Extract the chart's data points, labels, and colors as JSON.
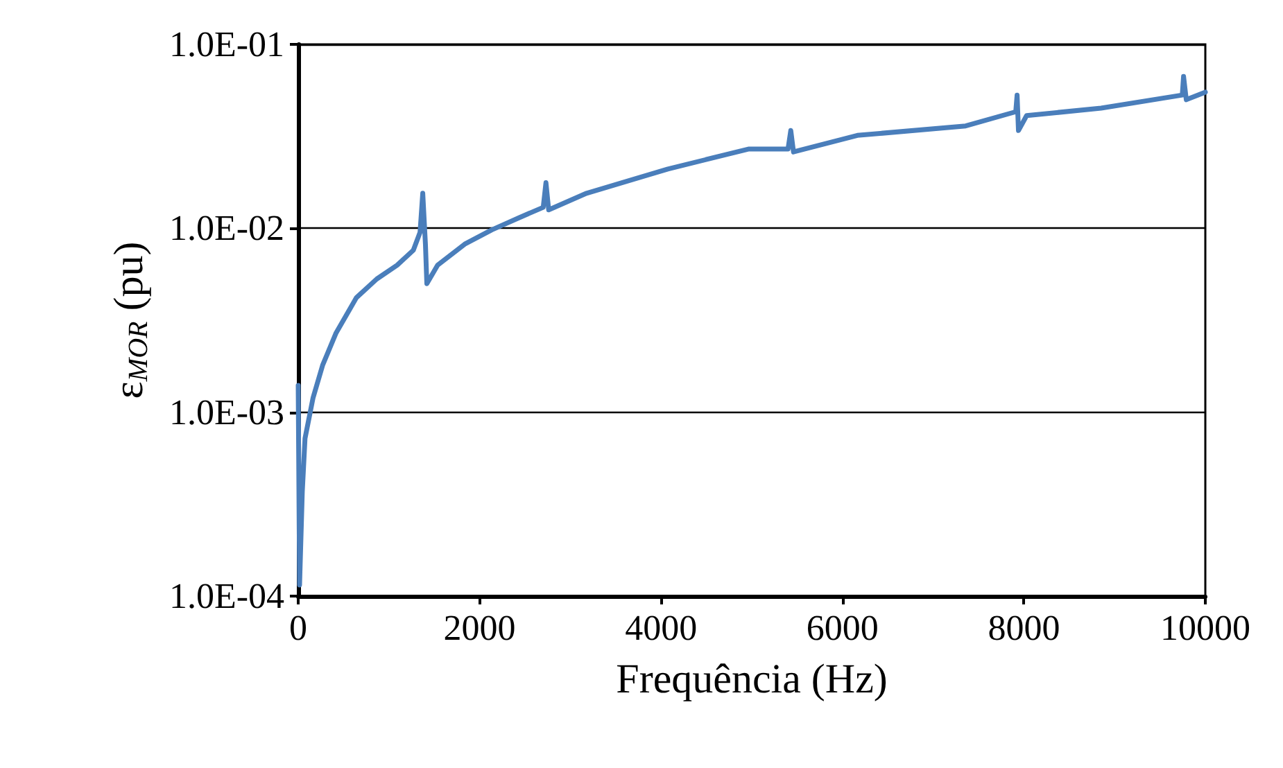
{
  "chart_data": {
    "type": "line",
    "xlabel": "Frequência (Hz)",
    "ylabel": "ε$_{MOR}$ (pu)",
    "log": "y",
    "grid": "y",
    "marker": "none",
    "line_style": "solid",
    "xlim": [
      0,
      10000
    ],
    "xticks": [
      0,
      2000,
      4000,
      6000,
      8000,
      10000
    ],
    "ylim": [
      0.0001,
      0.1
    ],
    "yticks": [
      {
        "value": 0.0001,
        "label": "1.0E-04"
      },
      {
        "value": 0.001,
        "label": "1.0E-03"
      },
      {
        "value": 0.01,
        "label": "1.0E-02"
      },
      {
        "value": 0.1,
        "label": "1.0E-01"
      }
    ],
    "series": [
      {
        "color": "#4a7ebb",
        "x": [
          0,
          15,
          45,
          75,
          164,
          269,
          418,
          642,
          866,
          1090,
          1269,
          1343,
          1373,
          1403,
          1418,
          1537,
          1836,
          2134,
          2433,
          2701,
          2731,
          2761,
          3179,
          4075,
          4970,
          5400,
          5430,
          5460,
          6164,
          7358,
          7910,
          7925,
          7940,
          8030,
          8851,
          9746,
          9760,
          9790,
          10000
        ],
        "values": [
          0.0014,
          0.000115,
          0.00037,
          0.00072,
          0.0012,
          0.0018,
          0.0027,
          0.0042,
          0.0053,
          0.0063,
          0.0076,
          0.0095,
          0.0155,
          0.0081,
          0.005,
          0.0063,
          0.0082,
          0.0098,
          0.0114,
          0.013,
          0.0177,
          0.0126,
          0.0155,
          0.021,
          0.027,
          0.027,
          0.034,
          0.026,
          0.032,
          0.036,
          0.043,
          0.053,
          0.034,
          0.041,
          0.045,
          0.053,
          0.067,
          0.05,
          0.055
        ]
      }
    ]
  }
}
